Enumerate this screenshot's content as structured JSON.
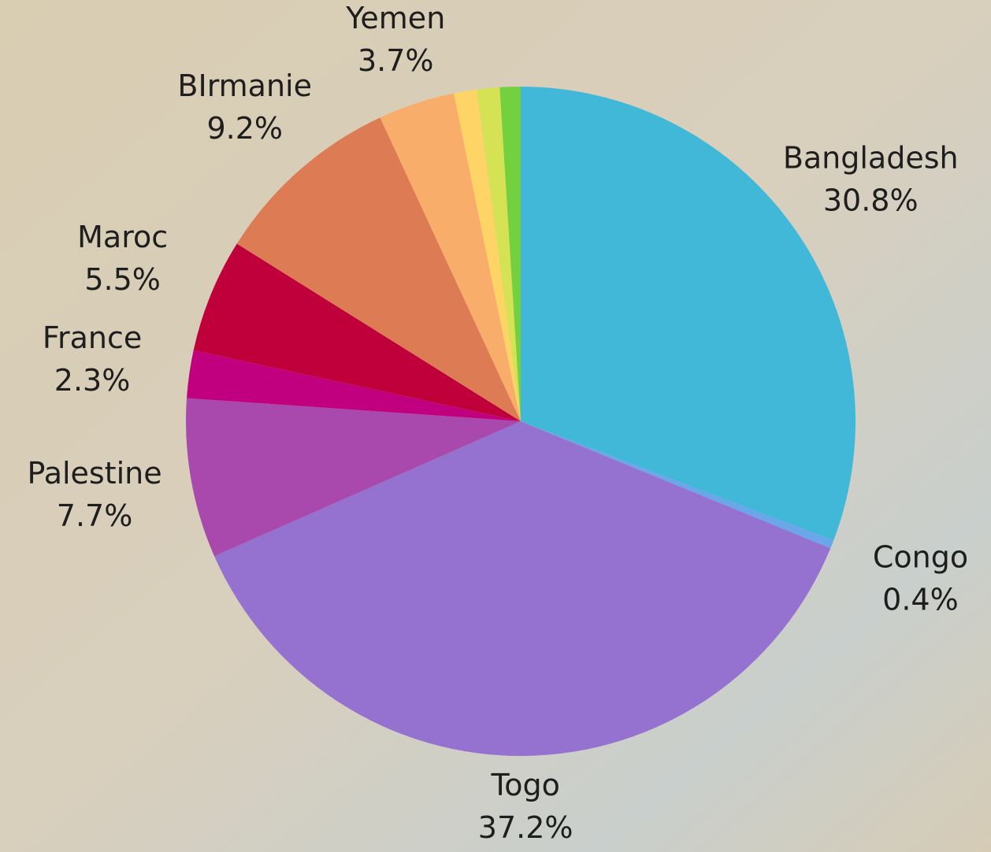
{
  "chart_data": {
    "type": "pie",
    "categories": [
      "Bangladesh",
      "Congo",
      "Togo",
      "Palestine",
      "France",
      "Maroc",
      "BIrmanie",
      "Yemen",
      null,
      null,
      null
    ],
    "values": [
      30.8,
      0.4,
      37.2,
      7.7,
      2.3,
      5.5,
      9.2,
      3.7,
      1.1,
      1.1,
      1.0
    ],
    "value_labels": [
      "30.8%",
      "0.4%",
      "37.2%",
      "7.7%",
      "2.3%",
      "5.5%",
      "9.2%",
      "3.7%",
      null,
      null,
      null
    ],
    "colors": [
      "#41b8d8",
      "#6aa6ea",
      "#9572d0",
      "#a948ad",
      "#c1007f",
      "#c0003b",
      "#dd7b55",
      "#f9ad6a",
      "#fed466",
      "#d5e254",
      "#73d03f"
    ]
  }
}
